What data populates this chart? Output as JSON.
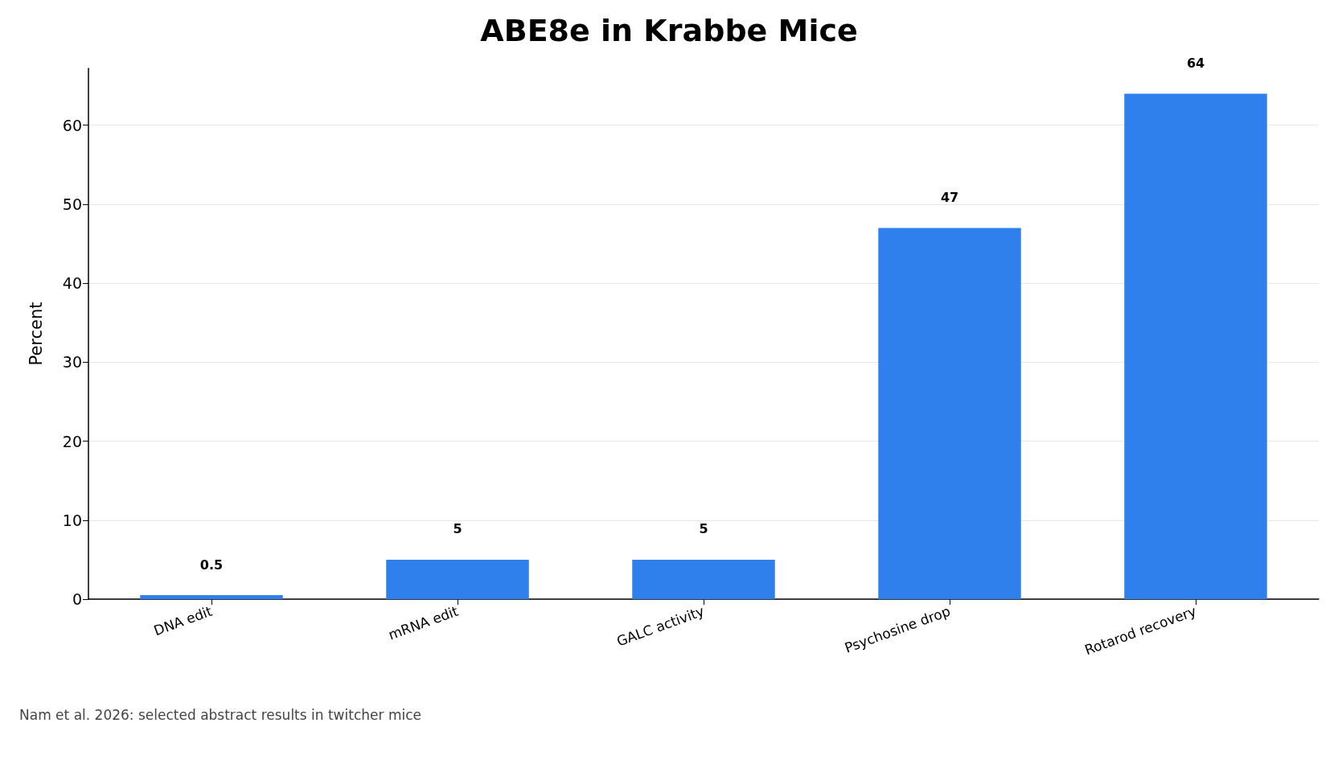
{
  "chart_data": {
    "type": "bar",
    "title": "ABE8e in Krabbe Mice",
    "ylabel": "Percent",
    "categories": [
      "DNA edit",
      "mRNA edit",
      "GALC activity",
      "Psychosine drop",
      "Rotarod recovery"
    ],
    "values": [
      0.5,
      5,
      5,
      47,
      64
    ],
    "color": "#2f80ed",
    "ylim": [
      0,
      67.2
    ],
    "yticks": [
      0,
      10,
      20,
      30,
      40,
      50,
      60
    ],
    "grid": "y",
    "data_labels": true,
    "annotations": [
      "Nam et al. 2026: selected abstract results in twitcher mice"
    ]
  }
}
